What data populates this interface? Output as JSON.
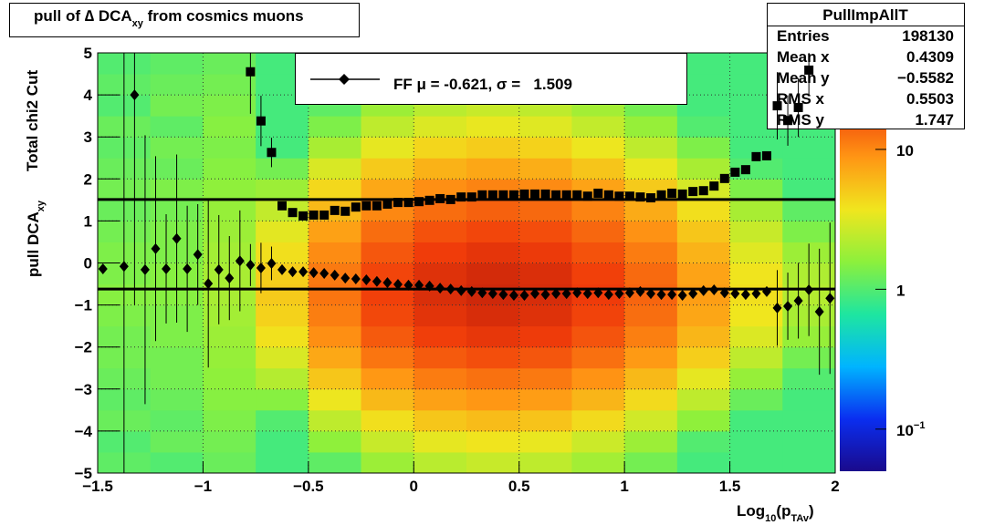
{
  "chart_data": {
    "type": "profile2d",
    "title": [
      {
        "text": "pull of ∆ DCA"
      },
      {
        "text": "xy",
        "sub": true
      },
      {
        "text": " from cosmics muons"
      }
    ],
    "y_labels": [
      [
        {
          "text": "Total chi2 Cut"
        }
      ],
      [
        {
          "text": "pull DCA"
        },
        {
          "text": "xy",
          "sub": true
        }
      ]
    ],
    "x_label": [
      {
        "text": "Log"
      },
      {
        "text": "10",
        "sub": true
      },
      {
        "text": "(p"
      },
      {
        "text": "TAv",
        "sub": true
      },
      {
        "text": ")"
      }
    ],
    "xlim": [
      -1.5,
      2
    ],
    "xticks": [
      {
        "value": -1.5,
        "label": "−1.5"
      },
      {
        "value": -1,
        "label": "−1"
      },
      {
        "value": -0.5,
        "label": "−0.5"
      },
      0,
      0.5,
      1,
      1.5,
      2
    ],
    "ylim": [
      -5,
      5
    ],
    "yticks": [
      {
        "value": -5,
        "label": "−5"
      },
      {
        "value": -4,
        "label": "−4"
      },
      {
        "value": -3,
        "label": "−3"
      },
      {
        "value": -2,
        "label": "−2"
      },
      {
        "value": -1,
        "label": "−1"
      },
      0,
      1,
      2,
      3,
      4,
      5
    ],
    "grid": true,
    "zlim": [
      0.05,
      49
    ],
    "zlog": true,
    "zticks": [
      {
        "value": 0.1,
        "label": "10",
        "sup": "−1"
      },
      1,
      10
    ],
    "palette": [
      "#1a0a8c",
      "#0a2ef0",
      "#00b4ff",
      "#1ee6a0",
      "#8cf03c",
      "#f0e61e",
      "#ff9614",
      "#f03c0a",
      "#9a0a0a"
    ],
    "histogram": {
      "xbins": [
        -1.5,
        -1.25,
        -1,
        -0.75,
        -0.5,
        -0.25,
        0,
        0.25,
        0.5,
        0.75,
        1,
        1.25,
        1.5,
        1.75,
        2
      ],
      "ybins": [
        -5,
        -4.5,
        -4,
        -3.5,
        -3,
        -2.5,
        -2,
        -1.5,
        -1,
        -0.5,
        0,
        0.5,
        1,
        1.5,
        2,
        2.5,
        3,
        3.5,
        4,
        4.5,
        5
      ],
      "z": [
        [
          1.1,
          1.0,
          1.2,
          0.9,
          1.1,
          1.8,
          2.3,
          2.6,
          2.4,
          1.9,
          1.3,
          0.9,
          0.9,
          0.9
        ],
        [
          1.0,
          1.2,
          1.3,
          0.9,
          1.6,
          2.6,
          3.4,
          3.8,
          3.5,
          2.7,
          1.8,
          1.0,
          0.9,
          0.9
        ],
        [
          1.2,
          1.1,
          1.4,
          1.0,
          2.4,
          4.0,
          5.2,
          5.8,
          5.4,
          4.2,
          2.8,
          1.6,
          0.9,
          0.9
        ],
        [
          1.1,
          1.2,
          1.5,
          1.5,
          3.6,
          6.0,
          7.8,
          8.7,
          8.1,
          6.3,
          4.2,
          2.4,
          1.2,
          0.9
        ],
        [
          1.2,
          1.3,
          1.6,
          2.2,
          5.2,
          8.6,
          11.2,
          12.5,
          11.6,
          9.0,
          6.0,
          3.4,
          1.7,
          1.0
        ],
        [
          1.3,
          1.3,
          1.7,
          3.0,
          7.2,
          12,
          15.6,
          17.4,
          16.2,
          12.6,
          8.4,
          4.8,
          2.4,
          1.3
        ],
        [
          1.3,
          1.4,
          1.8,
          3.9,
          9.4,
          15.6,
          20.3,
          22.6,
          21.1,
          16.4,
          10.9,
          6.2,
          3.1,
          1.7
        ],
        [
          1.4,
          1.4,
          1.9,
          4.6,
          11,
          18.4,
          23.9,
          26.7,
          24.8,
          19.3,
          12.9,
          7.4,
          3.7,
          2.0
        ],
        [
          1.5,
          1.5,
          2.0,
          5,
          12,
          20,
          26,
          29,
          27,
          21,
          14,
          8,
          4,
          2.2
        ],
        [
          1.4,
          1.5,
          2.0,
          4.8,
          11.4,
          19,
          24.7,
          27.6,
          25.7,
          20,
          13.3,
          7.6,
          3.8,
          2.1
        ],
        [
          1.4,
          1.4,
          1.9,
          4.0,
          9.6,
          16,
          20.8,
          23.2,
          21.6,
          16.8,
          11.2,
          6.4,
          3.2,
          1.8
        ],
        [
          1.3,
          1.4,
          1.8,
          3.3,
          7.8,
          13,
          16.9,
          18.9,
          17.6,
          13.7,
          9.1,
          5.2,
          2.6,
          1.4
        ],
        [
          1.2,
          1.3,
          1.7,
          2.5,
          6.0,
          10,
          13,
          14.5,
          13.5,
          10.5,
          7.0,
          4.0,
          2.0,
          1.1
        ],
        [
          1.3,
          1.4,
          1.6,
          1.8,
          4.3,
          7.2,
          9.4,
          10.4,
          9.7,
          7.6,
          5.0,
          2.9,
          1.4,
          0.9
        ],
        [
          1.2,
          1.2,
          1.5,
          1.3,
          3.0,
          5.0,
          6.5,
          7.3,
          6.8,
          5.3,
          3.5,
          2.0,
          1.0,
          0.9
        ],
        [
          1.1,
          1.3,
          1.4,
          0.9,
          2.0,
          3.4,
          4.4,
          4.9,
          4.6,
          3.6,
          2.4,
          1.4,
          0.9,
          0.9
        ],
        [
          1.2,
          1.1,
          1.5,
          0.9,
          1.4,
          2.4,
          3.1,
          3.5,
          3.2,
          2.5,
          1.7,
          1.0,
          0.9,
          0.9
        ],
        [
          1.0,
          1.3,
          1.4,
          0.9,
          1.1,
          1.8,
          2.3,
          2.6,
          2.4,
          1.9,
          1.3,
          0.9,
          0.9,
          0.9
        ],
        [
          1.1,
          1.2,
          1.3,
          0.9,
          0.9,
          1.4,
          1.8,
          2.0,
          1.9,
          1.5,
          1.0,
          0.9,
          0.9,
          0.9
        ],
        [
          1.0,
          1.1,
          1.2,
          0.9,
          0.9,
          1.2,
          1.6,
          1.7,
          1.6,
          1.3,
          0.9,
          0.9,
          0.9,
          0.9
        ]
      ]
    },
    "x": [
      -1.475,
      -1.425,
      -1.375,
      -1.325,
      -1.275,
      -1.225,
      -1.175,
      -1.125,
      -1.075,
      -1.025,
      -0.975,
      -0.925,
      -0.875,
      -0.825,
      -0.775,
      -0.725,
      -0.675,
      -0.625,
      -0.575,
      -0.525,
      -0.475,
      -0.425,
      -0.375,
      -0.325,
      -0.275,
      -0.225,
      -0.175,
      -0.125,
      -0.075,
      -0.025,
      0.025,
      0.075,
      0.125,
      0.175,
      0.225,
      0.275,
      0.325,
      0.375,
      0.425,
      0.475,
      0.525,
      0.575,
      0.625,
      0.675,
      0.725,
      0.775,
      0.825,
      0.875,
      0.925,
      0.975,
      1.025,
      1.075,
      1.125,
      1.175,
      1.225,
      1.275,
      1.325,
      1.375,
      1.425,
      1.475,
      1.525,
      1.575,
      1.625,
      1.675,
      1.725,
      1.775,
      1.825,
      1.875,
      1.925,
      1.975
    ],
    "series": [
      {
        "marker": "diamond",
        "color": "#000000",
        "values": [
          -0.14,
          null,
          -0.08,
          4.0,
          -0.16,
          0.34,
          -0.14,
          0.58,
          -0.14,
          0.2,
          -0.49,
          -0.16,
          -0.36,
          0.05,
          -0.05,
          -0.12,
          -0.01,
          -0.16,
          -0.21,
          -0.21,
          -0.23,
          -0.25,
          -0.29,
          -0.36,
          -0.38,
          -0.4,
          -0.44,
          -0.47,
          -0.51,
          -0.53,
          -0.53,
          -0.55,
          -0.6,
          -0.62,
          -0.66,
          -0.68,
          -0.71,
          -0.73,
          -0.75,
          -0.77,
          -0.77,
          -0.73,
          -0.75,
          -0.73,
          -0.73,
          -0.71,
          -0.73,
          -0.71,
          -0.75,
          -0.73,
          -0.71,
          -0.68,
          -0.73,
          -0.75,
          -0.75,
          -0.77,
          -0.73,
          -0.66,
          -0.64,
          -0.71,
          -0.73,
          -0.75,
          -0.73,
          -0.68,
          -1.07,
          -1.03,
          -0.9,
          -0.64,
          -1.16,
          -0.84
        ],
        "errors": [
          0,
          null,
          5.5,
          5,
          3.2,
          2.2,
          1.3,
          2.0,
          1.5,
          1.2,
          2.0,
          1.3,
          1.0,
          1.2,
          0.5,
          0.6,
          0.4,
          0.05,
          0.05,
          0.05,
          0.04,
          0.04,
          0.03,
          0.03,
          0.03,
          0.03,
          0.03,
          0.03,
          0.03,
          0.03,
          0.03,
          0.03,
          0.03,
          0.03,
          0.03,
          0.03,
          0.03,
          0.03,
          0.03,
          0.03,
          0.03,
          0.03,
          0.03,
          0.03,
          0.03,
          0.03,
          0.03,
          0.03,
          0.03,
          0.03,
          0.03,
          0.03,
          0.03,
          0.03,
          0.03,
          0.04,
          0.04,
          0.04,
          0.05,
          0.05,
          0.06,
          0.06,
          0.08,
          0.1,
          0.9,
          0.8,
          0.9,
          1.1,
          1.5,
          1.8
        ]
      },
      {
        "marker": "square",
        "color": "#000000",
        "values": [
          null,
          null,
          null,
          null,
          null,
          null,
          null,
          null,
          null,
          null,
          null,
          null,
          null,
          null,
          4.55,
          3.38,
          2.63,
          1.36,
          1.2,
          1.12,
          1.14,
          1.14,
          1.25,
          1.23,
          1.33,
          1.36,
          1.36,
          1.4,
          1.44,
          1.44,
          1.46,
          1.49,
          1.53,
          1.51,
          1.57,
          1.57,
          1.62,
          1.62,
          1.62,
          1.62,
          1.64,
          1.64,
          1.64,
          1.62,
          1.62,
          1.62,
          1.59,
          1.66,
          1.62,
          1.59,
          1.59,
          1.57,
          1.55,
          1.62,
          1.66,
          1.64,
          1.7,
          1.72,
          1.83,
          2.01,
          2.16,
          2.22,
          2.53,
          2.55,
          3.74,
          3.39,
          3.7,
          4.59,
          null,
          null
        ],
        "errors": [
          null,
          null,
          null,
          null,
          null,
          null,
          null,
          null,
          null,
          null,
          null,
          null,
          null,
          null,
          1.0,
          0.6,
          0.35,
          0.05,
          0.04,
          0.04,
          0.03,
          0.03,
          0.03,
          0.03,
          0.03,
          0.03,
          0.03,
          0.03,
          0.03,
          0.03,
          0.03,
          0.03,
          0.03,
          0.03,
          0.03,
          0.03,
          0.03,
          0.03,
          0.03,
          0.03,
          0.03,
          0.03,
          0.03,
          0.03,
          0.03,
          0.03,
          0.03,
          0.03,
          0.03,
          0.03,
          0.03,
          0.03,
          0.03,
          0.03,
          0.03,
          0.04,
          0.04,
          0.05,
          0.06,
          0.07,
          0.08,
          0.09,
          0.1,
          0.1,
          0.8,
          0.6,
          0.7,
          0.6,
          null,
          null
        ]
      }
    ],
    "legend": {
      "prefix": "FF μ = ",
      "mu": -0.621,
      "middle": ", σ =   ",
      "sigma": 1.509
    },
    "stats": {
      "title": "PullImpAllT",
      "rows": [
        {
          "name": "Entries",
          "value": 198130
        },
        {
          "name": "Mean x",
          "value": 0.4309
        },
        {
          "name": "Mean y",
          "value": -0.5582,
          "label": "−0.5582"
        },
        {
          "name": "RMS x",
          "value": 0.5503
        },
        {
          "name": "RMS y",
          "value": 1.747
        }
      ]
    }
  }
}
